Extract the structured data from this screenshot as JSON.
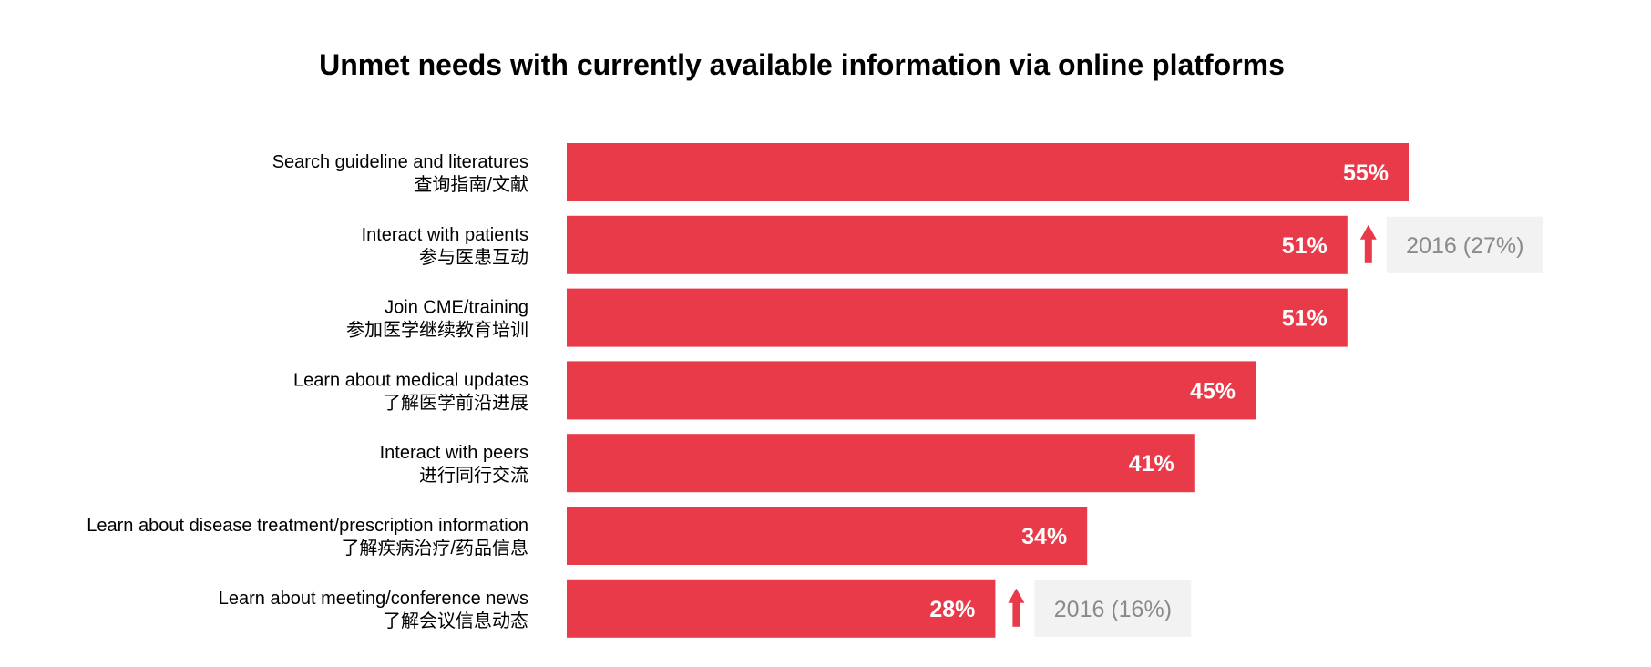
{
  "chart_data": {
    "type": "bar",
    "orientation": "horizontal",
    "title": "Unmet needs with currently available information via online platforms",
    "xlim": [
      0,
      100
    ],
    "grid": false,
    "legend": "none",
    "colors": {
      "bar": "#e83a48",
      "arrow": "#e83a48",
      "comparison_box": "#f2f2f2",
      "comparison_text": "#8a8a8a",
      "value_text": "#ffffff"
    },
    "categories": [
      {
        "en": "Search guideline and literatures",
        "zh": "查询指南/文献"
      },
      {
        "en": "Interact with patients",
        "zh": "参与医患互动"
      },
      {
        "en": "Join CME/training",
        "zh": "参加医学继续教育培训"
      },
      {
        "en": "Learn about medical updates",
        "zh": "了解医学前沿进展"
      },
      {
        "en": "Interact with peers",
        "zh": "进行同行交流"
      },
      {
        "en": "Learn about disease treatment/prescription information",
        "zh": "了解疾病治疗/药品信息"
      },
      {
        "en": "Learn about meeting/conference news",
        "zh": "了解会议信息动态"
      }
    ],
    "values": [
      55,
      51,
      51,
      45,
      41,
      34,
      28
    ],
    "value_labels": [
      "55%",
      "51%",
      "51%",
      "45%",
      "41%",
      "34%",
      "28%"
    ],
    "comparisons": [
      {
        "index": 1,
        "label": "2016 (27%)",
        "value": 27,
        "indicator": "arrow-up-icon"
      },
      {
        "index": 6,
        "label": "2016 (16%)",
        "value": 16,
        "indicator": "arrow-up-icon"
      }
    ]
  }
}
